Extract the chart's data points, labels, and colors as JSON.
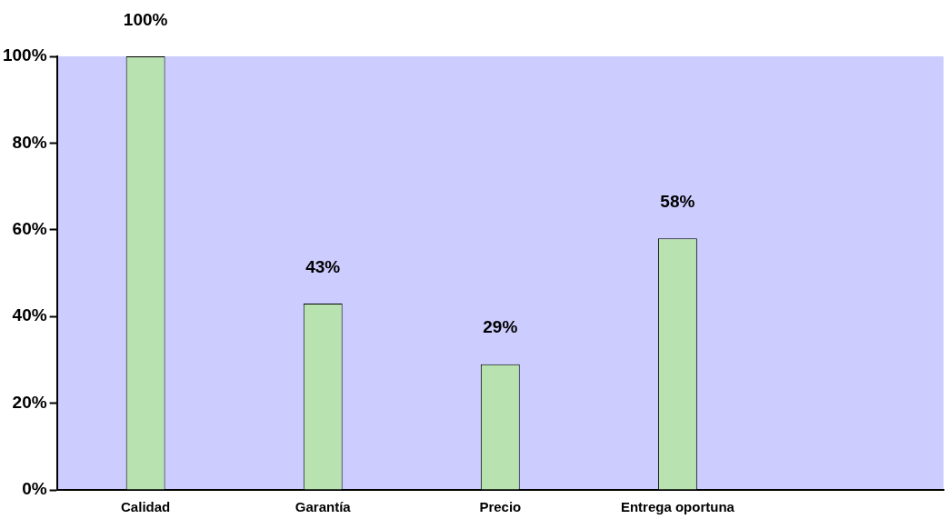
{
  "chart_data": {
    "type": "bar",
    "categories": [
      "Calidad",
      "Garantía",
      "Precio",
      "Entrega oportuna",
      null
    ],
    "values": [
      100,
      43,
      29,
      58,
      null
    ],
    "value_labels": [
      "100%",
      "43%",
      "29%",
      "58%",
      null
    ],
    "color": "#b8e2b0",
    "ylim": [
      0,
      100
    ],
    "yticks": [
      {
        "value": 0,
        "label": "0%"
      },
      {
        "value": 20,
        "label": "20%"
      },
      {
        "value": 40,
        "label": "40%"
      },
      {
        "value": 60,
        "label": "60%"
      },
      {
        "value": 80,
        "label": "80%"
      },
      {
        "value": 100,
        "label": "100%"
      }
    ],
    "grid": false,
    "legend": false
  }
}
